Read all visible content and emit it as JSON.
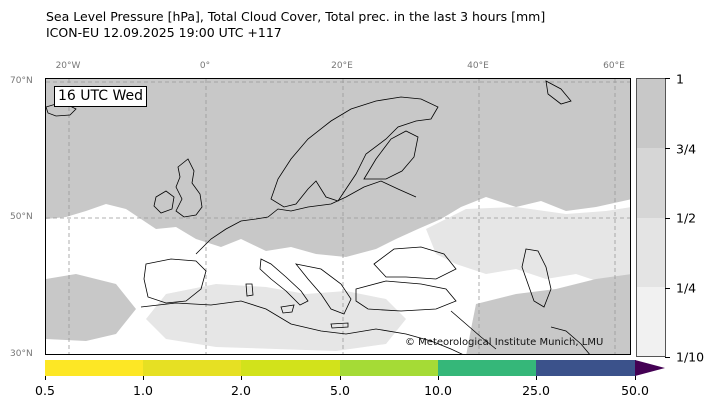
{
  "header": {
    "title_line1": "Sea Level Pressure [hPa], Total Cloud Cover, Total prec. in the last 3 hours [mm]",
    "title_line2": "ICON-EU 12.09.2025 19:00 UTC +117"
  },
  "map": {
    "time_label": "16 UTC Wed",
    "copyright": "© Meteorological Institute Munich, LMU",
    "longitude_labels": [
      "20°W",
      "0°",
      "20°E",
      "40°E",
      "60°E"
    ],
    "latitude_labels": [
      "70°N",
      "50°N",
      "30°N"
    ],
    "colors": {
      "cloud_full": "#c8c8c8",
      "cloud_partial": "#e6e6e6",
      "clear": "#ffffff",
      "coastline": "#000000",
      "gridline": "#999999"
    }
  },
  "cloud_cover_legend": {
    "labels": [
      "1",
      "3/4",
      "1/2",
      "1/4",
      "1/10"
    ],
    "colors": [
      "#c8c8c8",
      "#d6d6d6",
      "#e4e4e4",
      "#f1f1f1"
    ]
  },
  "precipitation_legend": {
    "labels": [
      "0.5",
      "1.0",
      "2.0",
      "5.0",
      "10.0",
      "25.0",
      "50.0"
    ],
    "colors": [
      "#fde725",
      "#e6e023",
      "#d2e21b",
      "#a5db36",
      "#35b779",
      "#3b528b",
      "#440154"
    ]
  }
}
